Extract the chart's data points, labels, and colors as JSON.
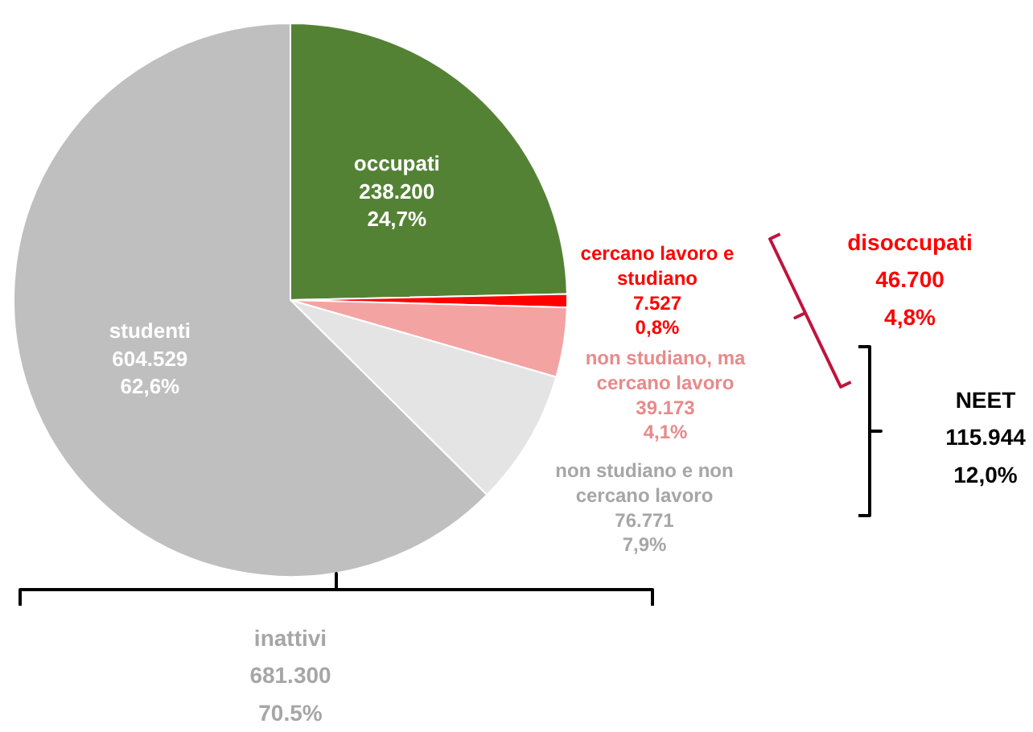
{
  "chart_data": {
    "type": "pie",
    "categories": [
      "occupati",
      "cercano lavoro e\nstudiano",
      "non studiano, ma\ncercano lavoro",
      "non studiano e non\ncercano lavoro",
      "studenti"
    ],
    "values": [
      238200,
      7527,
      39173,
      76771,
      604529
    ],
    "colors": [
      "#548235",
      "#ff0000",
      "#f4a3a3",
      "#e4e4e4",
      "#bfbfbf"
    ],
    "value_labels": [
      "238.200\n24,7%",
      "7.527\n0,8%",
      "39.173\n4,1%",
      "76.771\n7,9%",
      "604.529\n62,6%"
    ],
    "annotations": [
      "disoccupati\n46.700\n4,8%",
      "NEET\n115.944\n12,0%",
      "inattivi\n681.300\n70.5%"
    ]
  }
}
